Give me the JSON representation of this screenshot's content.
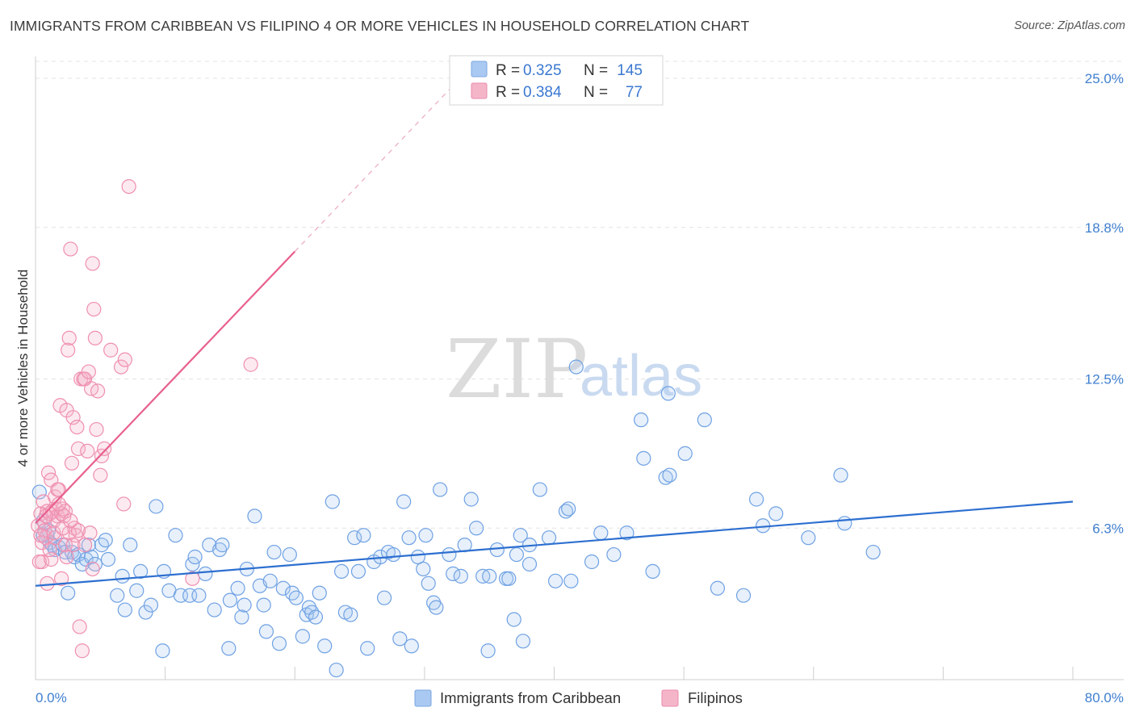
{
  "title": "IMMIGRANTS FROM CARIBBEAN VS FILIPINO 4 OR MORE VEHICLES IN HOUSEHOLD CORRELATION CHART",
  "source": "Source: ZipAtlas.com",
  "watermark": {
    "zip": "ZIP",
    "atlas": "atlas"
  },
  "legend_top": [
    {
      "r_label": "R =",
      "r_value": "0.325",
      "n_label": "N =",
      "n_value": "145",
      "color": "#a9c9f2"
    },
    {
      "r_label": "R =",
      "r_value": "0.384",
      "n_label": "N =",
      "n_value": "77",
      "color": "#f5b5c9"
    }
  ],
  "legend_bottom": [
    {
      "label": "Immigrants from Caribbean",
      "color": "#a9c9f2"
    },
    {
      "label": "Filipinos",
      "color": "#f5b5c9"
    }
  ],
  "colors": {
    "blue": "#6fa1e3",
    "blue_line": "#2d6fd0",
    "pink": "#ef8fb0",
    "pink_line": "#e8608f",
    "grid": "#e3e3e3",
    "tick_text": "#3f7fd0"
  },
  "chart_data": {
    "type": "scatter",
    "title": "IMMIGRANTS FROM CARIBBEAN VS FILIPINO 4 OR MORE VEHICLES IN HOUSEHOLD CORRELATION CHART",
    "xlabel": "",
    "ylabel": "4 or more Vehicles in Household",
    "xlim": [
      0,
      80
    ],
    "ylim": [
      0,
      25.6
    ],
    "x_tick_labels": [
      "0.0%",
      "80.0%"
    ],
    "y_ticks": [
      6.3,
      12.5,
      18.8,
      25.0
    ],
    "y_tick_labels": [
      "6.3%",
      "12.5%",
      "18.8%",
      "25.0%"
    ],
    "grid": true,
    "legend_position": "top-center",
    "series": [
      {
        "name": "Immigrants from Caribbean",
        "color": "#6fa1e3",
        "trend": {
          "x": [
            0,
            80
          ],
          "y": [
            3.9,
            7.4
          ]
        },
        "points": [
          [
            0.3,
            7.8
          ],
          [
            0.6,
            6.6
          ],
          [
            0.9,
            6.0
          ],
          [
            1.1,
            5.7
          ],
          [
            1.3,
            5.6
          ],
          [
            1.5,
            5.4
          ],
          [
            1.8,
            5.5
          ],
          [
            2.1,
            5.6
          ],
          [
            2.3,
            5.3
          ],
          [
            2.5,
            3.6
          ],
          [
            2.8,
            5.3
          ],
          [
            3.0,
            5.1
          ],
          [
            3.3,
            5.2
          ],
          [
            3.6,
            4.8
          ],
          [
            3.9,
            5.0
          ],
          [
            4.1,
            5.6
          ],
          [
            4.3,
            5.1
          ],
          [
            4.6,
            4.8
          ],
          [
            5.1,
            5.6
          ],
          [
            5.4,
            5.8
          ],
          [
            5.6,
            5.0
          ],
          [
            6.3,
            3.5
          ],
          [
            6.7,
            4.3
          ],
          [
            6.9,
            2.9
          ],
          [
            7.3,
            5.6
          ],
          [
            7.8,
            3.7
          ],
          [
            8.1,
            4.5
          ],
          [
            8.5,
            2.8
          ],
          [
            8.9,
            3.1
          ],
          [
            9.3,
            7.2
          ],
          [
            9.8,
            1.2
          ],
          [
            9.9,
            4.5
          ],
          [
            10.3,
            3.7
          ],
          [
            10.8,
            6.0
          ],
          [
            11.2,
            3.5
          ],
          [
            11.9,
            3.5
          ],
          [
            12.1,
            4.8
          ],
          [
            12.3,
            5.1
          ],
          [
            12.6,
            3.5
          ],
          [
            13.1,
            4.4
          ],
          [
            13.4,
            5.6
          ],
          [
            13.8,
            2.9
          ],
          [
            14.2,
            5.4
          ],
          [
            14.4,
            5.6
          ],
          [
            14.9,
            1.3
          ],
          [
            15.0,
            3.3
          ],
          [
            15.6,
            3.8
          ],
          [
            15.9,
            2.6
          ],
          [
            16.1,
            3.1
          ],
          [
            16.3,
            4.6
          ],
          [
            16.9,
            6.8
          ],
          [
            17.3,
            3.9
          ],
          [
            17.6,
            3.1
          ],
          [
            17.8,
            2.0
          ],
          [
            18.1,
            4.1
          ],
          [
            18.4,
            5.3
          ],
          [
            18.8,
            1.5
          ],
          [
            19.1,
            3.8
          ],
          [
            19.6,
            5.2
          ],
          [
            19.8,
            3.6
          ],
          [
            20.1,
            3.4
          ],
          [
            20.6,
            1.8
          ],
          [
            20.9,
            2.7
          ],
          [
            21.1,
            3.0
          ],
          [
            21.3,
            2.8
          ],
          [
            21.6,
            2.6
          ],
          [
            21.9,
            3.6
          ],
          [
            22.3,
            1.4
          ],
          [
            22.9,
            7.4
          ],
          [
            23.6,
            4.5
          ],
          [
            23.9,
            2.8
          ],
          [
            23.2,
            0.4
          ],
          [
            24.3,
            2.7
          ],
          [
            24.6,
            5.9
          ],
          [
            24.9,
            4.5
          ],
          [
            25.3,
            6.0
          ],
          [
            25.6,
            1.3
          ],
          [
            26.1,
            4.9
          ],
          [
            26.6,
            5.1
          ],
          [
            26.9,
            3.4
          ],
          [
            27.2,
            5.3
          ],
          [
            27.6,
            5.2
          ],
          [
            28.1,
            1.7
          ],
          [
            28.4,
            7.4
          ],
          [
            28.8,
            5.9
          ],
          [
            29.0,
            1.4
          ],
          [
            29.5,
            5.1
          ],
          [
            29.9,
            4.6
          ],
          [
            30.1,
            6.0
          ],
          [
            30.3,
            4.0
          ],
          [
            30.7,
            3.2
          ],
          [
            30.9,
            3.0
          ],
          [
            31.2,
            7.9
          ],
          [
            31.9,
            5.2
          ],
          [
            32.2,
            4.4
          ],
          [
            32.8,
            4.3
          ],
          [
            33.1,
            5.6
          ],
          [
            33.6,
            7.5
          ],
          [
            34.0,
            6.3
          ],
          [
            34.5,
            4.3
          ],
          [
            34.9,
            1.2
          ],
          [
            35.0,
            4.3
          ],
          [
            35.6,
            5.4
          ],
          [
            36.3,
            4.2
          ],
          [
            36.5,
            4.2
          ],
          [
            36.9,
            2.5
          ],
          [
            37.1,
            5.2
          ],
          [
            37.4,
            6.0
          ],
          [
            37.6,
            1.6
          ],
          [
            38.1,
            4.8
          ],
          [
            38.1,
            5.6
          ],
          [
            38.9,
            7.9
          ],
          [
            39.6,
            5.9
          ],
          [
            40.1,
            4.1
          ],
          [
            40.9,
            7.0
          ],
          [
            41.1,
            7.1
          ],
          [
            41.3,
            4.1
          ],
          [
            41.7,
            13.0
          ],
          [
            42.9,
            4.9
          ],
          [
            43.6,
            6.1
          ],
          [
            44.6,
            5.2
          ],
          [
            45.6,
            6.1
          ],
          [
            46.7,
            10.8
          ],
          [
            46.9,
            9.2
          ],
          [
            47.6,
            4.5
          ],
          [
            48.6,
            8.4
          ],
          [
            48.9,
            8.5
          ],
          [
            48.8,
            11.9
          ],
          [
            50.1,
            9.4
          ],
          [
            51.6,
            10.8
          ],
          [
            52.6,
            3.8
          ],
          [
            54.6,
            3.5
          ],
          [
            55.6,
            7.5
          ],
          [
            56.1,
            6.4
          ],
          [
            57.1,
            6.9
          ],
          [
            59.6,
            5.9
          ],
          [
            62.1,
            8.5
          ],
          [
            62.4,
            6.5
          ],
          [
            64.6,
            5.3
          ],
          [
            0.6,
            6.0
          ],
          [
            1.0,
            6.2
          ]
        ]
      },
      {
        "name": "Filipinos",
        "color": "#ef8fb0",
        "trend": {
          "x": [
            0,
            20
          ],
          "y": [
            6.5,
            17.8
          ]
        },
        "points": [
          [
            0.2,
            6.4
          ],
          [
            0.4,
            6.9
          ],
          [
            0.5,
            4.9
          ],
          [
            0.6,
            7.4
          ],
          [
            0.7,
            6.5
          ],
          [
            0.8,
            5.9
          ],
          [
            0.9,
            7.0
          ],
          [
            1.0,
            8.6
          ],
          [
            1.1,
            6.9
          ],
          [
            1.2,
            8.3
          ],
          [
            1.3,
            7.0
          ],
          [
            1.4,
            6.6
          ],
          [
            1.5,
            7.6
          ],
          [
            1.6,
            7.1
          ],
          [
            1.7,
            6.8
          ],
          [
            1.8,
            7.9
          ],
          [
            1.9,
            11.4
          ],
          [
            2.0,
            6.9
          ],
          [
            2.1,
            7.1
          ],
          [
            2.2,
            6.8
          ],
          [
            2.3,
            7.0
          ],
          [
            2.4,
            11.2
          ],
          [
            2.5,
            13.7
          ],
          [
            2.6,
            14.2
          ],
          [
            2.7,
            17.9
          ],
          [
            2.8,
            9.0
          ],
          [
            2.9,
            10.9
          ],
          [
            3.0,
            6.3
          ],
          [
            3.1,
            6.0
          ],
          [
            3.2,
            10.5
          ],
          [
            3.3,
            9.6
          ],
          [
            3.4,
            2.2
          ],
          [
            3.5,
            12.5
          ],
          [
            3.6,
            1.2
          ],
          [
            3.7,
            12.5
          ],
          [
            3.8,
            12.5
          ],
          [
            4.0,
            9.5
          ],
          [
            4.1,
            12.8
          ],
          [
            4.2,
            6.1
          ],
          [
            4.3,
            12.1
          ],
          [
            4.4,
            17.3
          ],
          [
            4.5,
            15.4
          ],
          [
            4.6,
            14.2
          ],
          [
            4.7,
            10.4
          ],
          [
            4.8,
            12.0
          ],
          [
            5.0,
            8.5
          ],
          [
            5.1,
            9.3
          ],
          [
            5.8,
            13.7
          ],
          [
            6.6,
            13.0
          ],
          [
            6.9,
            13.3
          ],
          [
            7.2,
            20.5
          ],
          [
            16.6,
            13.1
          ],
          [
            0.3,
            4.9
          ],
          [
            0.5,
            5.7
          ],
          [
            0.7,
            6.2
          ],
          [
            0.9,
            4.0
          ],
          [
            1.2,
            5.0
          ],
          [
            1.5,
            5.9
          ],
          [
            1.8,
            7.3
          ],
          [
            2.0,
            4.2
          ],
          [
            2.3,
            5.6
          ],
          [
            2.6,
            6.1
          ],
          [
            2.9,
            5.6
          ],
          [
            3.3,
            6.2
          ],
          [
            3.8,
            5.6
          ],
          [
            4.4,
            4.6
          ],
          [
            5.3,
            9.6
          ],
          [
            6.8,
            7.3
          ],
          [
            12.1,
            4.2
          ],
          [
            0.4,
            6.0
          ],
          [
            0.8,
            6.8
          ],
          [
            1.1,
            5.4
          ],
          [
            1.4,
            6.1
          ],
          [
            1.7,
            7.9
          ],
          [
            2.1,
            6.3
          ],
          [
            2.4,
            5.1
          ],
          [
            2.7,
            6.6
          ]
        ]
      }
    ]
  }
}
